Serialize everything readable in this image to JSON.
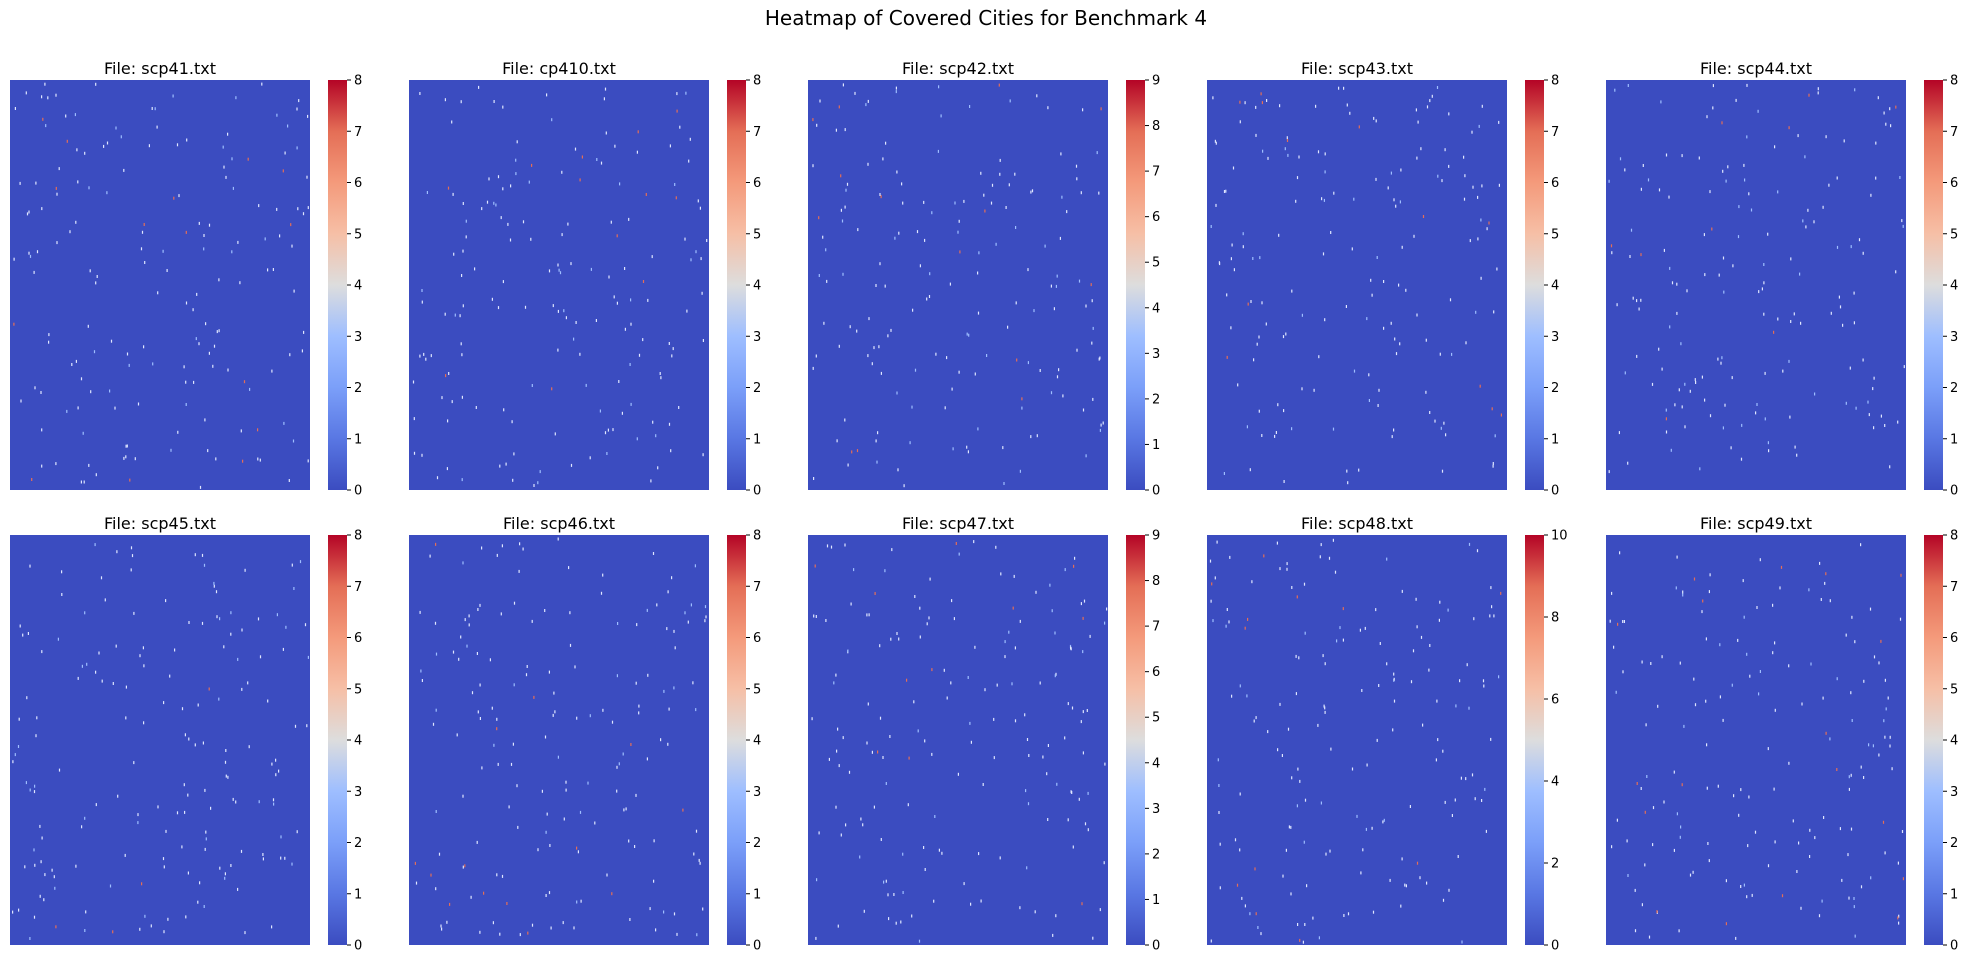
{
  "figure": {
    "title": "Heatmap of Covered Cities for Benchmark 4",
    "colormap": "coolwarm",
    "background_color": "#3b4cc0"
  },
  "chart_data": [
    {
      "type": "heatmap",
      "title": "File: scp41.txt",
      "cbar_range": [
        0,
        8
      ],
      "cbar_ticks": [
        "0",
        "1",
        "2",
        "3",
        "4",
        "5",
        "6",
        "7",
        "8"
      ],
      "xticks": [],
      "yticks": []
    },
    {
      "type": "heatmap",
      "title": "File: cp410.txt",
      "cbar_range": [
        0,
        8
      ],
      "cbar_ticks": [
        "0",
        "1",
        "2",
        "3",
        "4",
        "5",
        "6",
        "7",
        "8"
      ],
      "xticks": [],
      "yticks": []
    },
    {
      "type": "heatmap",
      "title": "File: scp42.txt",
      "cbar_range": [
        0,
        9
      ],
      "cbar_ticks": [
        "0",
        "1",
        "2",
        "3",
        "4",
        "5",
        "6",
        "7",
        "8",
        "9"
      ],
      "xticks": [],
      "yticks": []
    },
    {
      "type": "heatmap",
      "title": "File: scp43.txt",
      "cbar_range": [
        0,
        8
      ],
      "cbar_ticks": [
        "0",
        "1",
        "2",
        "3",
        "4",
        "5",
        "6",
        "7",
        "8"
      ],
      "xticks": [],
      "yticks": []
    },
    {
      "type": "heatmap",
      "title": "File: scp44.txt",
      "cbar_range": [
        0,
        8
      ],
      "cbar_ticks": [
        "0",
        "1",
        "2",
        "3",
        "4",
        "5",
        "6",
        "7",
        "8"
      ],
      "xticks": [],
      "yticks": []
    },
    {
      "type": "heatmap",
      "title": "File: scp45.txt",
      "cbar_range": [
        0,
        8
      ],
      "cbar_ticks": [
        "0",
        "1",
        "2",
        "3",
        "4",
        "5",
        "6",
        "7",
        "8"
      ],
      "xticks": [],
      "yticks": []
    },
    {
      "type": "heatmap",
      "title": "File: scp46.txt",
      "cbar_range": [
        0,
        8
      ],
      "cbar_ticks": [
        "0",
        "1",
        "2",
        "3",
        "4",
        "5",
        "6",
        "7",
        "8"
      ],
      "xticks": [],
      "yticks": []
    },
    {
      "type": "heatmap",
      "title": "File: scp47.txt",
      "cbar_range": [
        0,
        9
      ],
      "cbar_ticks": [
        "0",
        "1",
        "2",
        "3",
        "4",
        "5",
        "6",
        "7",
        "8",
        "9"
      ],
      "xticks": [],
      "yticks": []
    },
    {
      "type": "heatmap",
      "title": "File: scp48.txt",
      "cbar_range": [
        0,
        10
      ],
      "cbar_ticks": [
        "0",
        "2",
        "4",
        "6",
        "8",
        "10"
      ],
      "xticks": [],
      "yticks": []
    },
    {
      "type": "heatmap",
      "title": "File: scp49.txt",
      "cbar_range": [
        0,
        8
      ],
      "cbar_ticks": [
        "0",
        "1",
        "2",
        "3",
        "4",
        "5",
        "6",
        "7",
        "8"
      ],
      "xticks": [],
      "yticks": []
    }
  ]
}
